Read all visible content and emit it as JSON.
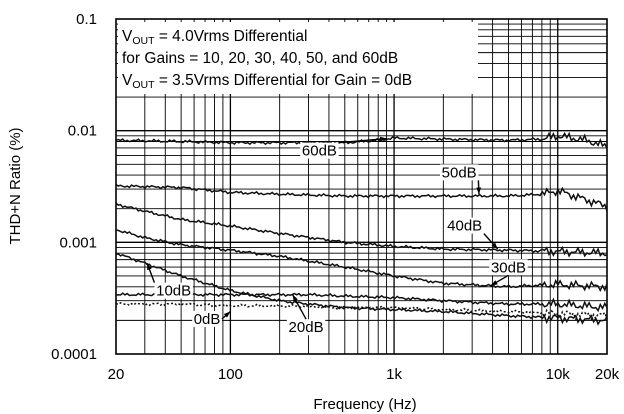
{
  "chart_data": {
    "type": "line",
    "title": "",
    "xlabel": "Frequency (Hz)",
    "ylabel": "THD+N Ratio (%)",
    "xscale": "log",
    "yscale": "log",
    "xlim": [
      20,
      20000
    ],
    "ylim": [
      0.0001,
      0.1
    ],
    "grid": true,
    "x_ticks": [
      {
        "value": 20,
        "label": "20"
      },
      {
        "value": 100,
        "label": "100"
      },
      {
        "value": 1000,
        "label": "1k"
      },
      {
        "value": 10000,
        "label": "10k"
      },
      {
        "value": 20000,
        "label": "20k"
      }
    ],
    "y_ticks": [
      {
        "value": 0.1,
        "label": "0.1"
      },
      {
        "value": 0.01,
        "label": "0.01"
      },
      {
        "value": 0.001,
        "label": "0.001"
      },
      {
        "value": 0.0001,
        "label": "0.0001"
      }
    ],
    "annotation": {
      "line1": {
        "pre": "V",
        "sub": "OUT",
        "post": " = 4.0Vrms Differential"
      },
      "line2": "for Gains = 10, 20, 30, 40, 50, and 60dB",
      "line3": {
        "pre": "V",
        "sub": "OUT",
        "post": " = 3.5Vrms Differential for Gain = 0dB"
      }
    },
    "series": [
      {
        "label": "60dB",
        "style": "solid",
        "x": [
          20,
          50,
          100,
          200,
          500,
          800,
          1000,
          2000,
          5000,
          8000,
          10000,
          15000,
          20000
        ],
        "y": [
          0.0082,
          0.008,
          0.0078,
          0.0078,
          0.0078,
          0.0082,
          0.0086,
          0.0084,
          0.0082,
          0.0084,
          0.009,
          0.0082,
          0.0072
        ],
        "label_at": {
          "x": 350,
          "y": 0.0061
        },
        "pointer_to": {
          "x": 900,
          "y": 0.0085
        }
      },
      {
        "label": "50dB",
        "style": "solid",
        "x": [
          20,
          50,
          100,
          200,
          500,
          1000,
          2000,
          5000,
          8000,
          10000,
          15000,
          20000
        ],
        "y": [
          0.0032,
          0.0031,
          0.0028,
          0.0027,
          0.0026,
          0.0026,
          0.0026,
          0.0026,
          0.0027,
          0.0029,
          0.0024,
          0.0021
        ],
        "label_at": {
          "x": 2500,
          "y": 0.0039
        },
        "pointer_to": {
          "x": 3300,
          "y": 0.0027
        }
      },
      {
        "label": "40dB",
        "style": "solid",
        "x": [
          20,
          30,
          50,
          100,
          200,
          500,
          1000,
          2000,
          5000,
          10000,
          20000
        ],
        "y": [
          0.0022,
          0.0019,
          0.0016,
          0.0014,
          0.0012,
          0.001,
          0.00092,
          0.00087,
          0.00085,
          0.00083,
          0.0008
        ],
        "label_at": {
          "x": 2700,
          "y": 0.0013
        },
        "pointer_to": {
          "x": 4300,
          "y": 0.00087
        }
      },
      {
        "label": "30dB",
        "style": "solid",
        "x": [
          20,
          30,
          50,
          100,
          200,
          500,
          1000,
          2000,
          5000,
          10000,
          20000
        ],
        "y": [
          0.0013,
          0.0011,
          0.00095,
          0.00085,
          0.00075,
          0.0006,
          0.0005,
          0.00043,
          0.0004,
          0.00042,
          0.0004
        ],
        "label_at": {
          "x": 5000,
          "y": 0.00055
        },
        "pointer_to": {
          "x": 3900,
          "y": 0.00041
        }
      },
      {
        "label": "10dB",
        "style": "solid",
        "x": [
          20,
          30,
          50,
          100,
          200,
          300,
          500,
          1000,
          2000,
          5000,
          10000,
          20000
        ],
        "y": [
          0.0008,
          0.00065,
          0.0005,
          0.00037,
          0.0003,
          0.00028,
          0.00026,
          0.00025,
          0.00024,
          0.00022,
          0.00021,
          0.0002
        ],
        "label_at": {
          "x": 45,
          "y": 0.00034
        },
        "pointer_to": {
          "x": 31,
          "y": 0.00065
        }
      },
      {
        "label": "20dB",
        "style": "solid",
        "x": [
          20,
          50,
          100,
          200,
          300,
          500,
          1000,
          2000,
          5000,
          10000,
          20000
        ],
        "y": [
          0.00034,
          0.00034,
          0.00034,
          0.00034,
          0.00034,
          0.00033,
          0.00032,
          0.0003,
          0.00028,
          0.00028,
          0.00026
        ],
        "label_at": {
          "x": 290,
          "y": 0.00016
        },
        "pointer_to": {
          "x": 240,
          "y": 0.00034
        }
      },
      {
        "label": "0dB",
        "style": "dotted",
        "x": [
          20,
          50,
          100,
          200,
          500,
          1000,
          2000,
          5000,
          10000,
          20000
        ],
        "y": [
          0.00028,
          0.00028,
          0.00027,
          0.00027,
          0.00026,
          0.00026,
          0.00025,
          0.00024,
          0.00023,
          0.00022
        ],
        "label_at": {
          "x": 72,
          "y": 0.00019
        },
        "pointer_to": {
          "x": 100,
          "y": 0.00024
        }
      }
    ]
  }
}
